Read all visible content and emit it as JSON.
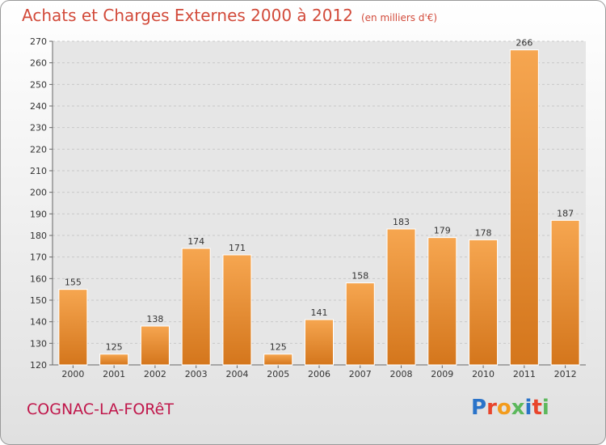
{
  "header": {
    "title": "Achats et Charges Externes 2000 à 2012",
    "unit": "(en milliers d'€)"
  },
  "footer": {
    "commune": "COGNAC-LA-FORêT",
    "brand": "Proxiti",
    "brand_colors": [
      "#2a73c9",
      "#e8452c",
      "#f39c1d",
      "#5cb85c",
      "#2a73c9",
      "#e8452c",
      "#5cb85c"
    ]
  },
  "colors": {
    "bar_top": "#f6a650",
    "bar_bottom": "#d4761c",
    "title": "#d24a3a",
    "commune": "#c0174b"
  },
  "chart_data": {
    "type": "bar",
    "title": "Achats et Charges Externes 2000 à 2012",
    "subtitle": "(en milliers d'€)",
    "xlabel": "",
    "ylabel": "",
    "categories": [
      "2000",
      "2001",
      "2002",
      "2003",
      "2004",
      "2005",
      "2006",
      "2007",
      "2008",
      "2009",
      "2010",
      "2011",
      "2012"
    ],
    "values": [
      155,
      125,
      138,
      174,
      171,
      125,
      141,
      158,
      183,
      179,
      178,
      266,
      187
    ],
    "ylim": [
      120,
      270
    ],
    "yticks": [
      120,
      130,
      140,
      150,
      160,
      170,
      180,
      190,
      200,
      210,
      220,
      230,
      240,
      250,
      260,
      270
    ],
    "grid": true,
    "legend": "none"
  }
}
